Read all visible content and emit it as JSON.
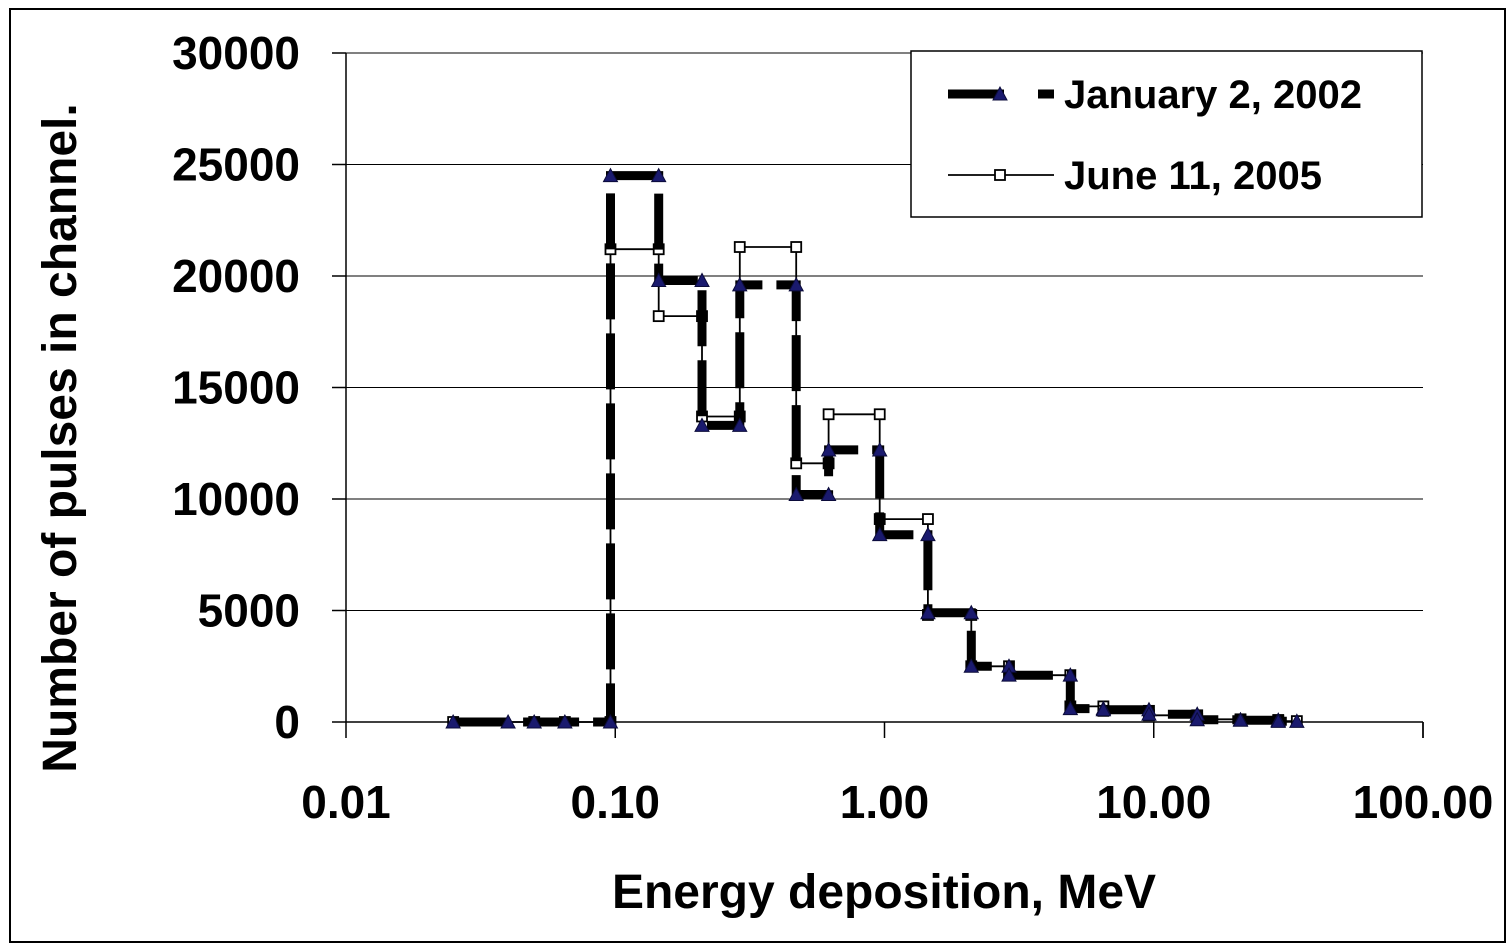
{
  "chart_data": {
    "type": "line",
    "title": "",
    "xlabel": "Energy deposition, MeV",
    "ylabel": "Number of pulses in channel.",
    "x_scale": "log",
    "xlim": [
      0.01,
      100
    ],
    "ylim": [
      0,
      30000
    ],
    "x_ticks": [
      0.01,
      0.1,
      1,
      10,
      100
    ],
    "x_tick_labels": [
      "0.01",
      "0.10",
      "1.00",
      "10.00",
      "100.00"
    ],
    "y_ticks": [
      0,
      5000,
      10000,
      15000,
      20000,
      25000,
      30000
    ],
    "y_tick_labels": [
      "0",
      "5000",
      "10000",
      "15000",
      "20000",
      "25000",
      "30000"
    ],
    "grid": "horizontal",
    "legend_position": "top-right",
    "series": [
      {
        "name": "January 2, 2002",
        "style": "thick-dashed",
        "marker": "triangle",
        "color": "#000000",
        "marker_color": "#1a1a6e",
        "points": [
          [
            0.025,
            0
          ],
          [
            0.04,
            0
          ],
          [
            0.05,
            0
          ],
          [
            0.065,
            0
          ],
          [
            0.096,
            0
          ],
          [
            0.096,
            24500
          ],
          [
            0.145,
            24500
          ],
          [
            0.145,
            19800
          ],
          [
            0.21,
            19800
          ],
          [
            0.21,
            13300
          ],
          [
            0.29,
            13300
          ],
          [
            0.29,
            19600
          ],
          [
            0.47,
            19600
          ],
          [
            0.47,
            10200
          ],
          [
            0.62,
            10200
          ],
          [
            0.62,
            12200
          ],
          [
            0.96,
            12200
          ],
          [
            0.96,
            8400
          ],
          [
            1.45,
            8400
          ],
          [
            1.45,
            4900
          ],
          [
            2.1,
            4900
          ],
          [
            2.1,
            2500
          ],
          [
            2.9,
            2500
          ],
          [
            2.9,
            2100
          ],
          [
            4.9,
            2100
          ],
          [
            4.9,
            600
          ],
          [
            6.5,
            600
          ],
          [
            6.5,
            550
          ],
          [
            9.6,
            550
          ],
          [
            9.6,
            350
          ],
          [
            14.5,
            350
          ],
          [
            14.5,
            100
          ],
          [
            21,
            100
          ],
          [
            21,
            80
          ],
          [
            29,
            80
          ],
          [
            29,
            30
          ],
          [
            34,
            30
          ]
        ]
      },
      {
        "name": "June 11, 2005",
        "style": "thin-solid",
        "marker": "square",
        "color": "#000000",
        "marker_color": "#ffffff",
        "points": [
          [
            0.025,
            0
          ],
          [
            0.05,
            0
          ],
          [
            0.065,
            0
          ],
          [
            0.096,
            0
          ],
          [
            0.096,
            21200
          ],
          [
            0.145,
            21200
          ],
          [
            0.145,
            18200
          ],
          [
            0.21,
            18200
          ],
          [
            0.21,
            13700
          ],
          [
            0.29,
            13700
          ],
          [
            0.29,
            21300
          ],
          [
            0.47,
            21300
          ],
          [
            0.47,
            11600
          ],
          [
            0.62,
            11600
          ],
          [
            0.62,
            13800
          ],
          [
            0.96,
            13800
          ],
          [
            0.96,
            9100
          ],
          [
            1.45,
            9100
          ],
          [
            1.45,
            4800
          ],
          [
            2.1,
            4800
          ],
          [
            2.1,
            2500
          ],
          [
            2.9,
            2500
          ],
          [
            2.9,
            2100
          ],
          [
            4.9,
            2100
          ],
          [
            4.9,
            700
          ],
          [
            6.5,
            700
          ],
          [
            6.5,
            500
          ],
          [
            9.6,
            500
          ],
          [
            9.6,
            300
          ],
          [
            14.5,
            300
          ],
          [
            14.5,
            120
          ],
          [
            21,
            120
          ],
          [
            21,
            90
          ],
          [
            29,
            90
          ],
          [
            29,
            40
          ],
          [
            34,
            40
          ]
        ]
      }
    ]
  }
}
